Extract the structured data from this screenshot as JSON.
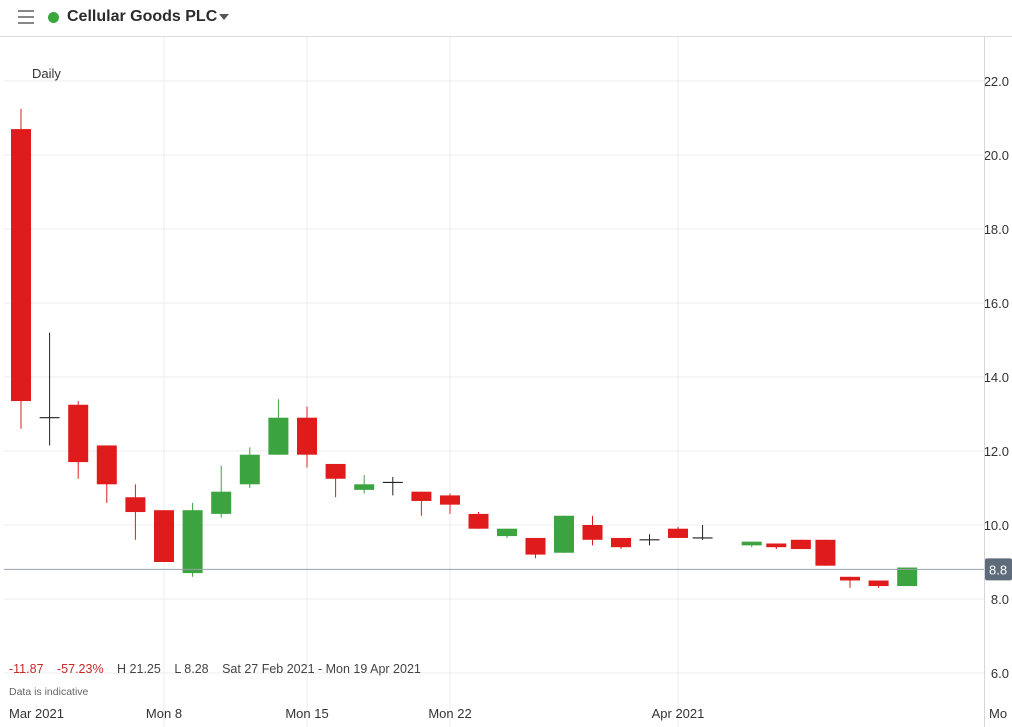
{
  "header": {
    "title": "Cellular Goods PLC",
    "status_color": "#3aa63f",
    "menu_icon": "hamburger-icon",
    "dropdown_icon": "caret-down-icon"
  },
  "period_label": "Daily",
  "stats": {
    "change": "-11.87",
    "change_pct": "-57.23%",
    "high": "H 21.25",
    "low": "L 8.28",
    "range": "Sat 27 Feb 2021 - Mon 19 Apr 2021"
  },
  "disclaimer": "Data is indicative",
  "colors": {
    "up": "#3ba33f",
    "down": "#e01b1b",
    "neutral": "#222222",
    "grid": "#ececec",
    "last_price_bg": "#5d6b7a"
  },
  "chart_data": {
    "type": "candlestick",
    "title": "Cellular Goods PLC",
    "ylim": [
      5.7,
      23.0
    ],
    "yticks": [
      6.0,
      8.0,
      10.0,
      12.0,
      14.0,
      16.0,
      18.0,
      20.0,
      22.0
    ],
    "ytick_labels": [
      "6.0",
      "8.0",
      "10.0",
      "12.0",
      "14.0",
      "16.0",
      "18.0",
      "20.0",
      "22.0"
    ],
    "xtick_labels": [
      "Mar 2021",
      "Mon 8",
      "Mon 15",
      "Mon 22",
      "Apr 2021",
      "Mo"
    ],
    "last_price": 8.8,
    "last_price_label": "8.8",
    "grid": true,
    "candles": [
      {
        "date": "2021-03-01",
        "open": 20.7,
        "high": 21.25,
        "low": 12.6,
        "close": 13.35
      },
      {
        "date": "2021-03-02",
        "open": 12.9,
        "high": 15.2,
        "low": 12.15,
        "close": 12.85
      },
      {
        "date": "2021-03-03",
        "open": 13.25,
        "high": 13.35,
        "low": 11.25,
        "close": 11.7
      },
      {
        "date": "2021-03-04",
        "open": 12.15,
        "high": 12.15,
        "low": 10.6,
        "close": 11.1
      },
      {
        "date": "2021-03-05",
        "open": 10.75,
        "high": 11.1,
        "low": 9.6,
        "close": 10.35
      },
      {
        "date": "2021-03-08",
        "open": 10.4,
        "high": 10.4,
        "low": 9.0,
        "close": 9.0
      },
      {
        "date": "2021-03-09",
        "open": 8.7,
        "high": 10.6,
        "low": 8.6,
        "close": 10.4
      },
      {
        "date": "2021-03-10",
        "open": 10.3,
        "high": 11.6,
        "low": 10.2,
        "close": 10.9
      },
      {
        "date": "2021-03-11",
        "open": 11.1,
        "high": 12.1,
        "low": 11.0,
        "close": 11.9
      },
      {
        "date": "2021-03-12",
        "open": 11.9,
        "high": 13.4,
        "low": 11.9,
        "close": 12.9
      },
      {
        "date": "2021-03-15",
        "open": 12.9,
        "high": 13.2,
        "low": 11.55,
        "close": 11.9
      },
      {
        "date": "2021-03-16",
        "open": 11.65,
        "high": 11.65,
        "low": 10.75,
        "close": 11.25
      },
      {
        "date": "2021-03-17",
        "open": 10.95,
        "high": 11.35,
        "low": 10.85,
        "close": 11.1
      },
      {
        "date": "2021-03-18",
        "open": 11.15,
        "high": 11.3,
        "low": 10.8,
        "close": 11.1
      },
      {
        "date": "2021-03-19",
        "open": 10.9,
        "high": 10.9,
        "low": 10.25,
        "close": 10.65
      },
      {
        "date": "2021-03-22",
        "open": 10.8,
        "high": 10.85,
        "low": 10.3,
        "close": 10.55
      },
      {
        "date": "2021-03-23",
        "open": 10.3,
        "high": 10.35,
        "low": 9.9,
        "close": 9.9
      },
      {
        "date": "2021-03-24",
        "open": 9.7,
        "high": 9.9,
        "low": 9.65,
        "close": 9.9
      },
      {
        "date": "2021-03-25",
        "open": 9.65,
        "high": 9.65,
        "low": 9.1,
        "close": 9.2
      },
      {
        "date": "2021-03-26",
        "open": 9.25,
        "high": 10.25,
        "low": 9.25,
        "close": 10.25
      },
      {
        "date": "2021-03-29",
        "open": 10.0,
        "high": 10.25,
        "low": 9.45,
        "close": 9.6
      },
      {
        "date": "2021-03-30",
        "open": 9.65,
        "high": 9.65,
        "low": 9.35,
        "close": 9.4
      },
      {
        "date": "2021-03-31",
        "open": 9.6,
        "high": 9.75,
        "low": 9.45,
        "close": 9.6
      },
      {
        "date": "2021-04-01",
        "open": 9.9,
        "high": 9.95,
        "low": 9.65,
        "close": 9.65
      },
      {
        "date": "2021-04-02",
        "open": 9.65,
        "high": 10.0,
        "low": 9.6,
        "close": 9.65
      },
      {
        "date": "2021-04-06",
        "open": 9.45,
        "high": 9.55,
        "low": 9.4,
        "close": 9.55
      },
      {
        "date": "2021-04-07",
        "open": 9.5,
        "high": 9.5,
        "low": 9.35,
        "close": 9.4
      },
      {
        "date": "2021-04-08",
        "open": 9.6,
        "high": 9.6,
        "low": 9.35,
        "close": 9.35
      },
      {
        "date": "2021-04-09",
        "open": 9.6,
        "high": 9.6,
        "low": 8.9,
        "close": 8.9
      },
      {
        "date": "2021-04-12",
        "open": 8.6,
        "high": 8.6,
        "low": 8.3,
        "close": 8.5
      },
      {
        "date": "2021-04-13",
        "open": 8.5,
        "high": 8.5,
        "low": 8.3,
        "close": 8.35
      },
      {
        "date": "2021-04-14",
        "open": 8.35,
        "high": 8.85,
        "low": 8.35,
        "close": 8.85
      }
    ]
  }
}
